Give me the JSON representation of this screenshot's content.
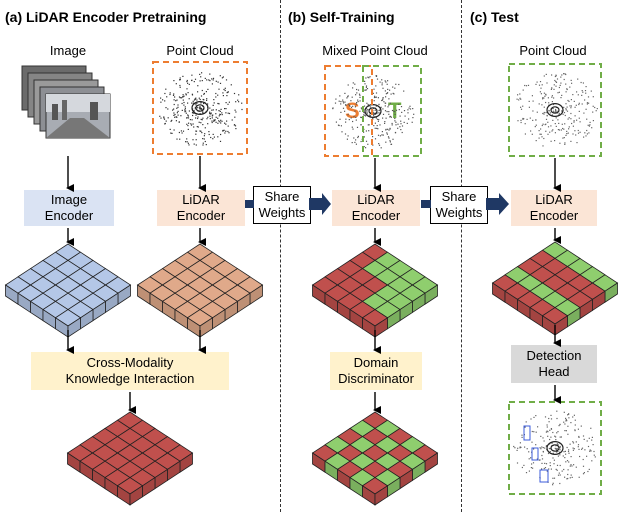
{
  "panels": {
    "a": {
      "title": "(a) LiDAR Encoder Pretraining"
    },
    "b": {
      "title": "(b) Self-Training"
    },
    "c": {
      "title": "(c) Test"
    }
  },
  "labels": {
    "image": "Image",
    "point_cloud_a": "Point Cloud",
    "mixed_point_cloud": "Mixed Point Cloud",
    "point_cloud_c": "Point Cloud",
    "source_letter": "S",
    "target_letter": "T"
  },
  "boxes": {
    "image_encoder": {
      "line1": "Image",
      "line2": "Encoder"
    },
    "lidar_encoder_a": {
      "line1": "LiDAR",
      "line2": "Encoder"
    },
    "lidar_encoder_b": {
      "line1": "LiDAR",
      "line2": "Encoder"
    },
    "lidar_encoder_c": {
      "line1": "LiDAR",
      "line2": "Encoder"
    },
    "cross_modality": {
      "line1": "Cross-Modality",
      "line2": "Knowledge Interaction"
    },
    "domain_discriminator": {
      "line1": "Domain",
      "line2": "Discriminator"
    },
    "detection_head": {
      "line1": "Detection",
      "line2": "Head"
    },
    "share_weights_1": {
      "line1": "Share",
      "line2": "Weights"
    },
    "share_weights_2": {
      "line1": "Share",
      "line2": "Weights"
    }
  },
  "colors": {
    "image_encoder_fill": "#dae3f3",
    "lidar_encoder_fill": "#fbe5d6",
    "cross_modality_fill": "#fff2cc",
    "detection_head_fill": "#d9d9d9",
    "orange_dash": "#ed7d31",
    "green_dash": "#70ad47",
    "cube_blue": "#b4c7e7",
    "cube_brown": "#e0a98a",
    "cube_red": "#c0504d",
    "cube_green": "#8fce6e",
    "share_arrow": "#1f3864"
  }
}
